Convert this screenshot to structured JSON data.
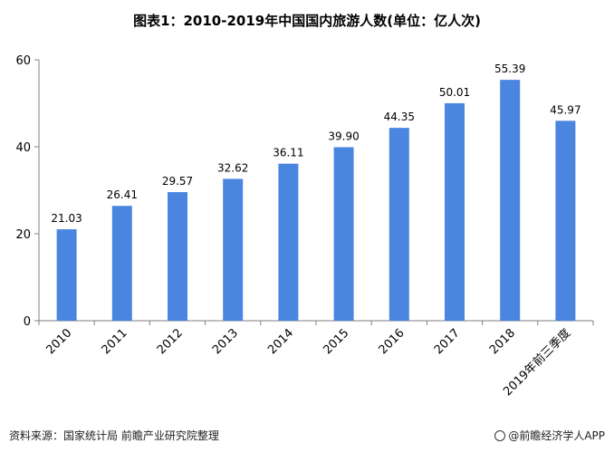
{
  "chart_data": {
    "type": "bar",
    "title": "图表1：2010-2019年中国国内旅游人数(单位：亿人次)",
    "categories": [
      "2010",
      "2011",
      "2012",
      "2013",
      "2014",
      "2015",
      "2016",
      "2017",
      "2018",
      "2019年前三季度"
    ],
    "values": [
      21.03,
      26.41,
      29.57,
      32.62,
      36.11,
      39.9,
      44.35,
      50.01,
      55.39,
      45.97
    ],
    "value_labels": [
      "21.03",
      "26.41",
      "29.57",
      "32.62",
      "36.11",
      "39.90",
      "44.35",
      "50.01",
      "55.39",
      "45.97"
    ],
    "ylim": [
      0,
      60
    ],
    "yticks": [
      0,
      20,
      40,
      60
    ],
    "xlabel": "",
    "ylabel": "",
    "grid": false,
    "legend": "none",
    "bar_color": "#4a86e0"
  },
  "footer": {
    "source": "资料来源：国家统计局 前瞻产业研究院整理",
    "brand": "@前瞻经济学人APP"
  }
}
